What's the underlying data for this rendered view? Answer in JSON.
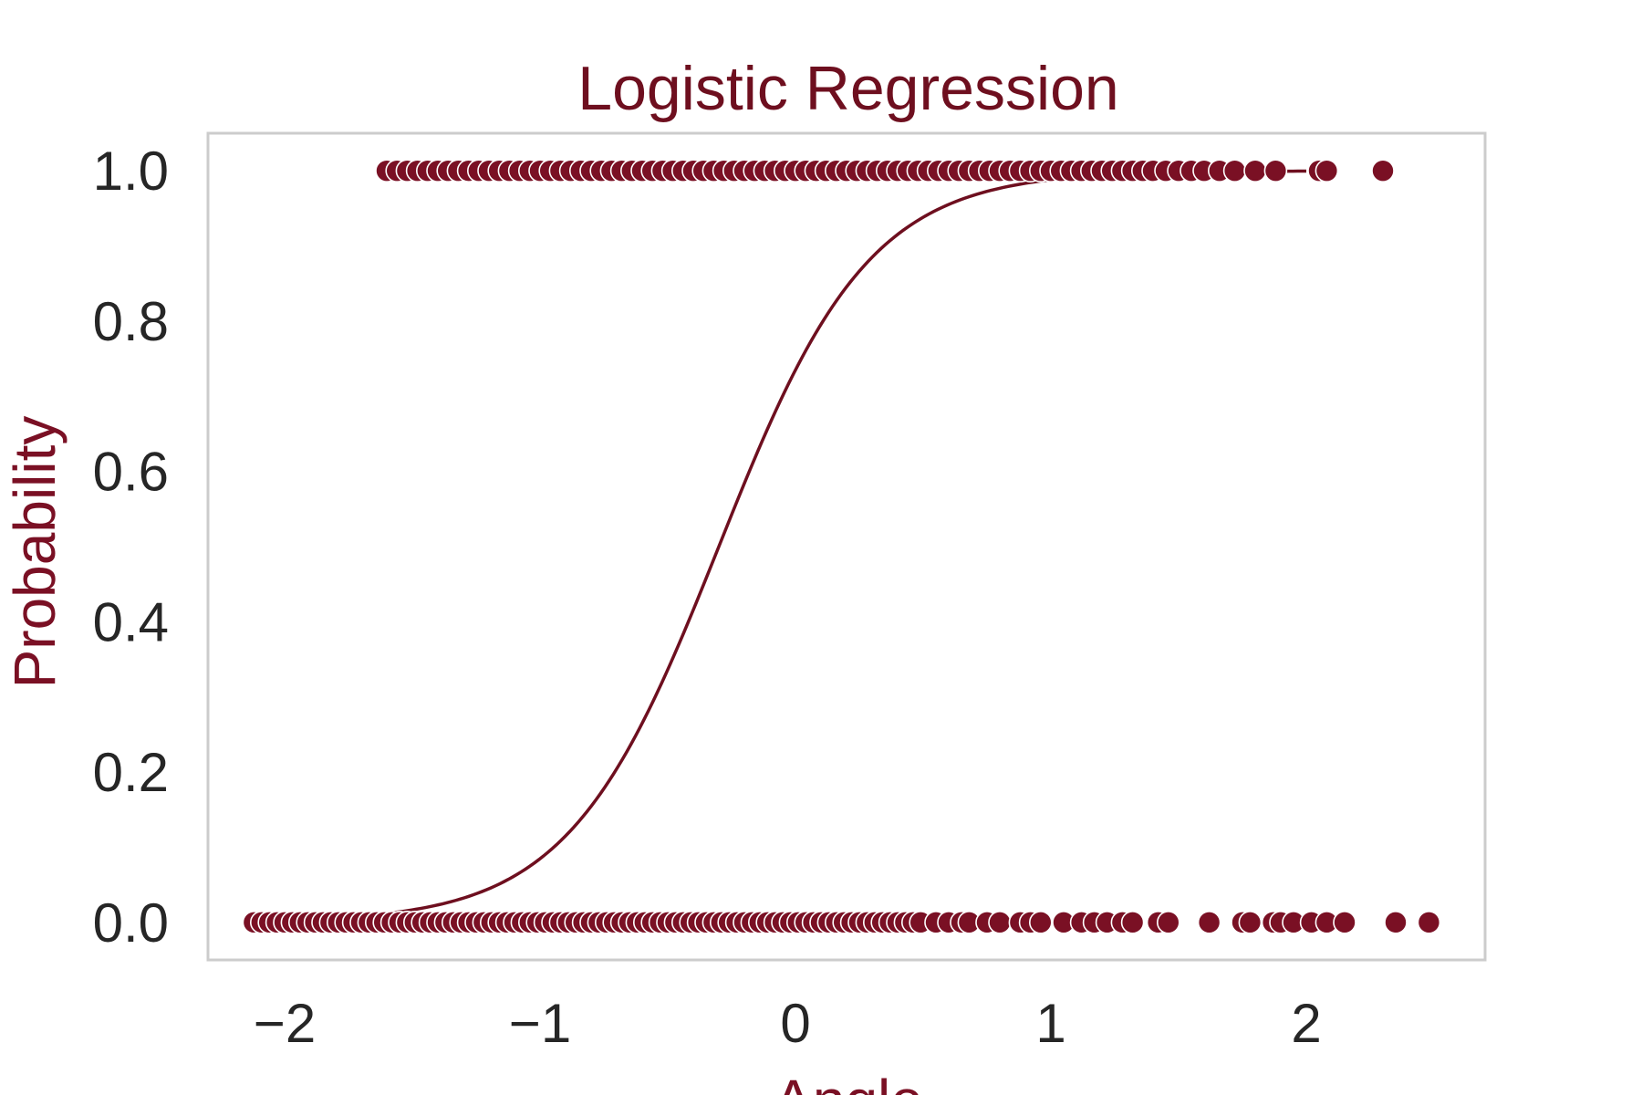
{
  "chart_data": {
    "type": "scatter",
    "title": "Logistic Regression",
    "xlabel": "Angle",
    "ylabel": "Probability",
    "xlim": [
      -2.3,
      2.7
    ],
    "ylim": [
      -0.05,
      1.05
    ],
    "xticks": [
      -2,
      -1,
      0,
      1,
      2
    ],
    "xtick_labels": [
      "−2",
      "−1",
      "0",
      "1",
      "2"
    ],
    "yticks": [
      0.0,
      0.2,
      0.4,
      0.6,
      0.8,
      1.0
    ],
    "ytick_labels": [
      "0.0",
      "0.2",
      "0.4",
      "0.6",
      "0.8",
      "1.0"
    ],
    "grid": false,
    "colors": {
      "points": "#7a1024",
      "curve": "#6e0f1f",
      "frame": "#cccccc"
    },
    "series": [
      {
        "kind": "points",
        "y": 1,
        "x": [
          -1.6,
          -1.56,
          -1.52,
          -1.48,
          -1.44,
          -1.4,
          -1.36,
          -1.32,
          -1.28,
          -1.24,
          -1.2,
          -1.16,
          -1.12,
          -1.08,
          -1.04,
          -1.0,
          -0.96,
          -0.92,
          -0.88,
          -0.84,
          -0.8,
          -0.76,
          -0.72,
          -0.68,
          -0.64,
          -0.6,
          -0.56,
          -0.52,
          -0.48,
          -0.44,
          -0.4,
          -0.36,
          -0.32,
          -0.28,
          -0.24,
          -0.2,
          -0.16,
          -0.12,
          -0.08,
          -0.04,
          0.0,
          0.04,
          0.08,
          0.12,
          0.16,
          0.2,
          0.24,
          0.28,
          0.32,
          0.36,
          0.4,
          0.44,
          0.48,
          0.52,
          0.56,
          0.6,
          0.64,
          0.68,
          0.72,
          0.76,
          0.8,
          0.84,
          0.88,
          0.92,
          0.96,
          1.0,
          1.04,
          1.08,
          1.12,
          1.16,
          1.2,
          1.24,
          1.28,
          1.32,
          1.36,
          1.4,
          1.45,
          1.5,
          1.55,
          1.6,
          1.66,
          1.72,
          1.8,
          1.88,
          2.05,
          2.08,
          2.3
        ]
      },
      {
        "kind": "points",
        "y": 0,
        "x": [
          -2.12,
          -2.09,
          -2.06,
          -2.03,
          -2.0,
          -1.97,
          -1.94,
          -1.91,
          -1.88,
          -1.85,
          -1.82,
          -1.79,
          -1.76,
          -1.73,
          -1.7,
          -1.67,
          -1.64,
          -1.61,
          -1.58,
          -1.55,
          -1.52,
          -1.49,
          -1.46,
          -1.43,
          -1.4,
          -1.37,
          -1.34,
          -1.31,
          -1.28,
          -1.25,
          -1.22,
          -1.19,
          -1.16,
          -1.13,
          -1.1,
          -1.07,
          -1.04,
          -1.01,
          -0.98,
          -0.95,
          -0.92,
          -0.89,
          -0.86,
          -0.83,
          -0.8,
          -0.77,
          -0.74,
          -0.71,
          -0.68,
          -0.65,
          -0.62,
          -0.59,
          -0.56,
          -0.53,
          -0.5,
          -0.47,
          -0.44,
          -0.41,
          -0.38,
          -0.35,
          -0.32,
          -0.29,
          -0.26,
          -0.23,
          -0.2,
          -0.17,
          -0.14,
          -0.11,
          -0.08,
          -0.05,
          -0.02,
          0.01,
          0.04,
          0.07,
          0.1,
          0.13,
          0.16,
          0.19,
          0.22,
          0.25,
          0.28,
          0.31,
          0.34,
          0.37,
          0.4,
          0.43,
          0.46,
          0.49,
          0.55,
          0.6,
          0.65,
          0.68,
          0.75,
          0.8,
          0.88,
          0.92,
          0.96,
          1.05,
          1.12,
          1.17,
          1.22,
          1.28,
          1.32,
          1.42,
          1.46,
          1.62,
          1.75,
          1.78,
          1.87,
          1.9,
          1.95,
          2.02,
          2.08,
          2.15,
          2.35,
          2.48
        ]
      },
      {
        "kind": "logistic-curve",
        "x_range": [
          -2.12,
          2.0
        ],
        "midpoint": -0.3,
        "steepness": 3.4
      }
    ]
  }
}
